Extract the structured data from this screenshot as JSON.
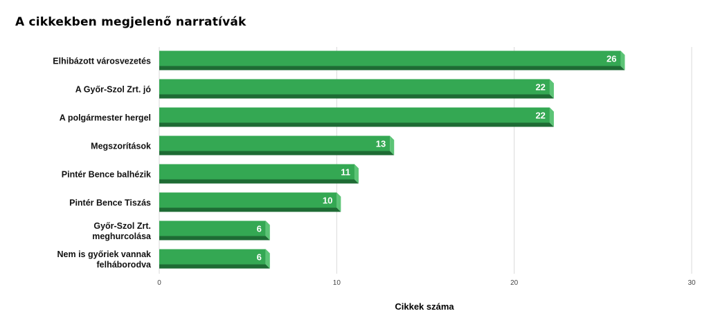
{
  "chart_data": {
    "type": "bar",
    "orientation": "horizontal",
    "title": "A cikkekben megjelenő narratívák",
    "xlabel": "Cikkek száma",
    "ylabel": "",
    "categories": [
      "Elhibázott városvezetés",
      "A Győr-Szol Zrt. jó",
      "A polgármester hergel",
      "Megszorítások",
      "Pintér Bence balhézik",
      "Pintér Bence Tiszás",
      "Győr-Szol Zrt. meghurcolása",
      "Nem is győriek vannak felháborodva"
    ],
    "values": [
      26,
      22,
      22,
      13,
      11,
      10,
      6,
      6
    ],
    "xlim": [
      0,
      30
    ],
    "xticks": [
      "0",
      "10",
      "20",
      "30"
    ],
    "grid": true,
    "data_labels": true,
    "legend": "none",
    "colors": {
      "bar": "#34a853",
      "bar_shadow": "#1e6b34",
      "bar_side": "#5cc476",
      "grid": "#d9d9d9",
      "label": "#ffffff"
    }
  }
}
